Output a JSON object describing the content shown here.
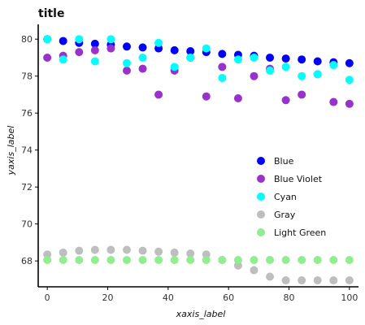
{
  "chart_data": {
    "type": "scatter",
    "title": "title",
    "xlabel": "xaxis_label",
    "ylabel": "yaxis_label",
    "xlim": [
      -3,
      103
    ],
    "ylim": [
      66.6,
      80.8
    ],
    "xticks": [
      0,
      20,
      40,
      60,
      80,
      100
    ],
    "yticks": [
      68,
      70,
      72,
      74,
      76,
      78,
      80
    ],
    "grid": false,
    "legend_position": "right",
    "x": [
      0,
      5.26,
      10.53,
      15.79,
      21.05,
      26.32,
      31.58,
      36.84,
      42.11,
      47.37,
      52.63,
      57.89,
      63.16,
      68.42,
      73.68,
      78.95,
      84.21,
      89.47,
      94.74,
      100
    ],
    "series": [
      {
        "name": "Blue",
        "color": "#0000ff",
        "values": [
          80.0,
          79.9,
          79.8,
          79.75,
          79.7,
          79.6,
          79.55,
          79.5,
          79.4,
          79.35,
          79.3,
          79.2,
          79.15,
          79.1,
          79.0,
          78.95,
          78.9,
          78.8,
          78.75,
          78.7
        ]
      },
      {
        "name": "Blue Violet",
        "color": "#9932cc",
        "values": [
          79.0,
          79.1,
          79.3,
          79.4,
          79.5,
          78.3,
          78.4,
          77.0,
          78.3,
          79.0,
          76.9,
          78.5,
          76.8,
          78.0,
          78.4,
          76.7,
          77.0,
          78.1,
          76.6,
          76.5
        ]
      },
      {
        "name": "Cyan",
        "color": "#00ffff",
        "values": [
          80.0,
          78.9,
          80.0,
          78.8,
          80.0,
          78.7,
          79.0,
          79.8,
          78.5,
          79.0,
          79.5,
          77.9,
          78.9,
          79.0,
          78.3,
          78.5,
          78.0,
          78.1,
          78.6,
          77.8
        ]
      },
      {
        "name": "Gray",
        "color": "#bebebe",
        "values": [
          68.35,
          68.45,
          68.55,
          68.6,
          68.6,
          68.6,
          68.55,
          68.5,
          68.45,
          68.4,
          68.35,
          68.05,
          67.75,
          67.5,
          67.15,
          66.95,
          66.95,
          66.95,
          66.95,
          66.95
        ]
      },
      {
        "name": "Light Green",
        "color": "#90ee90",
        "values": [
          68.05,
          68.05,
          68.05,
          68.05,
          68.05,
          68.05,
          68.05,
          68.05,
          68.05,
          68.05,
          68.05,
          68.05,
          68.05,
          68.05,
          68.05,
          68.05,
          68.05,
          68.05,
          68.05,
          68.05
        ]
      }
    ]
  }
}
